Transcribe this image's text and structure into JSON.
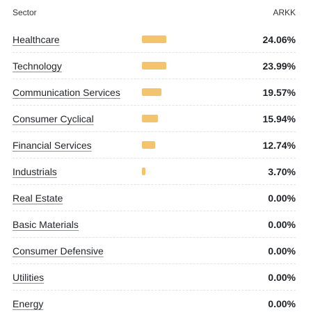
{
  "header": {
    "sector_label": "Sector",
    "fund_label": "ARKK"
  },
  "colors": {
    "bar": "#f5c46a"
  },
  "rows": [
    {
      "label": "Healthcare",
      "value": "24.06%",
      "weight": 24.06
    },
    {
      "label": "Technology",
      "value": "23.99%",
      "weight": 23.99
    },
    {
      "label": "Communication Services",
      "value": "19.57%",
      "weight": 19.57
    },
    {
      "label": "Consumer Cyclical",
      "value": "15.94%",
      "weight": 15.94
    },
    {
      "label": "Financial Services",
      "value": "12.74%",
      "weight": 12.74
    },
    {
      "label": "Industrials",
      "value": "3.70%",
      "weight": 3.7
    },
    {
      "label": "Real Estate",
      "value": "0.00%",
      "weight": 0
    },
    {
      "label": "Basic Materials",
      "value": "0.00%",
      "weight": 0
    },
    {
      "label": "Consumer Defensive",
      "value": "0.00%",
      "weight": 0
    },
    {
      "label": "Utilities",
      "value": "0.00%",
      "weight": 0
    },
    {
      "label": "Energy",
      "value": "0.00%",
      "weight": 0
    }
  ]
}
